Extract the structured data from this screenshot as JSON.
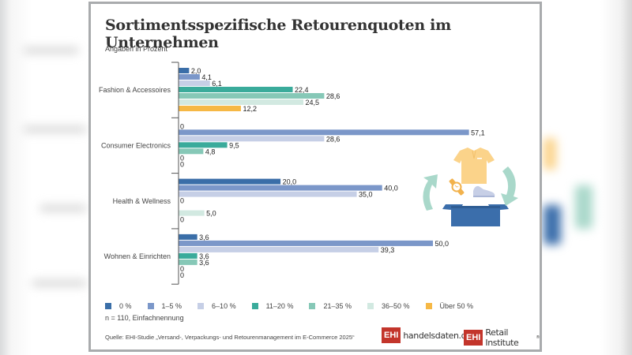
{
  "page": {
    "title": "Sortimentsspezifische Retourenquoten im Unternehmen",
    "subtitle": "Angaben in Prozent",
    "note": "n = 110, Einfachnennung",
    "source": "Quelle: EHI-Studie „Versand-, Verpackungs- und Retourenmanagement im E-Commerce 2025“",
    "logos": [
      {
        "box": "EHI",
        "text": "handelsdaten.de"
      },
      {
        "box": "EHI",
        "text": "Retail Institute",
        "mark": "®"
      }
    ],
    "illustration": {
      "icons": [
        "tshirt-icon",
        "watch-icon",
        "sneaker-icon",
        "box-icon",
        "cycle-arrow-left-icon",
        "cycle-arrow-right-icon"
      ],
      "colors": {
        "shirt": "#fbd38a",
        "watch": "#f2b24c",
        "shoe": "#c7cfe6",
        "box": "#3b6eab",
        "arrows": "#a9d8ca"
      }
    }
  },
  "chart_data": {
    "type": "bar",
    "orientation": "horizontal",
    "title": "Sortimentsspezifische Retourenquoten im Unternehmen",
    "subtitle": "Angaben in Prozent",
    "xlabel": "",
    "ylabel": "",
    "xlim": [
      0,
      60
    ],
    "grid": false,
    "legend_position": "bottom",
    "categories": [
      "Fashion & Accessoires",
      "Consumer Electronics",
      "Health & Wellness",
      "Wohnen & Einrichten"
    ],
    "series": [
      {
        "name": "0 %",
        "color": "#3a6ea8",
        "values": [
          2.0,
          0,
          20.0,
          3.6
        ],
        "labels": [
          "2,0",
          "0",
          "20,0",
          "3,6"
        ]
      },
      {
        "name": "1–5 %",
        "color": "#7b97c9",
        "values": [
          4.1,
          57.1,
          40.0,
          50.0
        ],
        "labels": [
          "4,1",
          "57,1",
          "40,0",
          "50,0"
        ]
      },
      {
        "name": "6–10 %",
        "color": "#c6cfe6",
        "values": [
          6.1,
          28.6,
          35.0,
          39.3
        ],
        "labels": [
          "6,1",
          "28,6",
          "35,0",
          "39,3"
        ]
      },
      {
        "name": "11–20 %",
        "color": "#3aab9b",
        "values": [
          22.4,
          9.5,
          0,
          3.6
        ],
        "labels": [
          "22,4",
          "9,5",
          "0",
          "3,6"
        ]
      },
      {
        "name": "21–35 %",
        "color": "#86c8b7",
        "values": [
          28.6,
          4.8,
          0,
          3.6
        ],
        "labels": [
          "28,6",
          "4,8",
          "",
          "3,6"
        ]
      },
      {
        "name": "36–50 %",
        "color": "#d2e9e1",
        "values": [
          24.5,
          0,
          5.0,
          0
        ],
        "labels": [
          "24,5",
          "0",
          "5,0",
          "0"
        ]
      },
      {
        "name": "Über 50 %",
        "color": "#f6b845",
        "values": [
          12.2,
          0,
          0,
          0
        ],
        "labels": [
          "12,2",
          "0",
          "0",
          "0"
        ]
      }
    ]
  }
}
